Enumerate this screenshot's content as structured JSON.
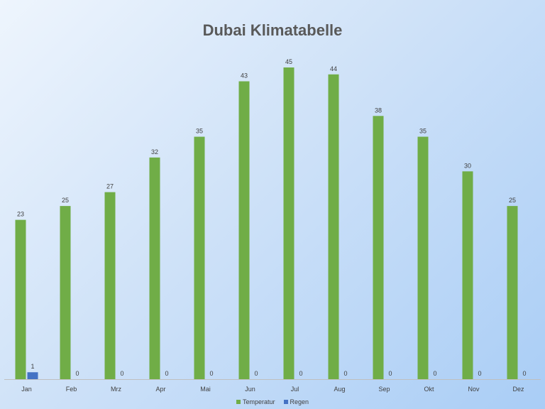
{
  "chart_data": {
    "type": "bar",
    "title": "Dubai Klimatabelle",
    "categories": [
      "Jan",
      "Feb",
      "Mrz",
      "Apr",
      "Mai",
      "Jun",
      "Jul",
      "Aug",
      "Sep",
      "Okt",
      "Nov",
      "Dez"
    ],
    "series": [
      {
        "name": "Temperatur",
        "color": "#70ad47",
        "values": [
          23,
          25,
          27,
          32,
          35,
          43,
          45,
          44,
          38,
          35,
          30,
          25
        ]
      },
      {
        "name": "Regen",
        "color": "#4472c4",
        "values": [
          1,
          0,
          0,
          0,
          0,
          0,
          0,
          0,
          0,
          0,
          0,
          0
        ]
      }
    ],
    "ylim": [
      0,
      45
    ],
    "grid": false,
    "legend_position": "bottom",
    "data_labels": true
  }
}
